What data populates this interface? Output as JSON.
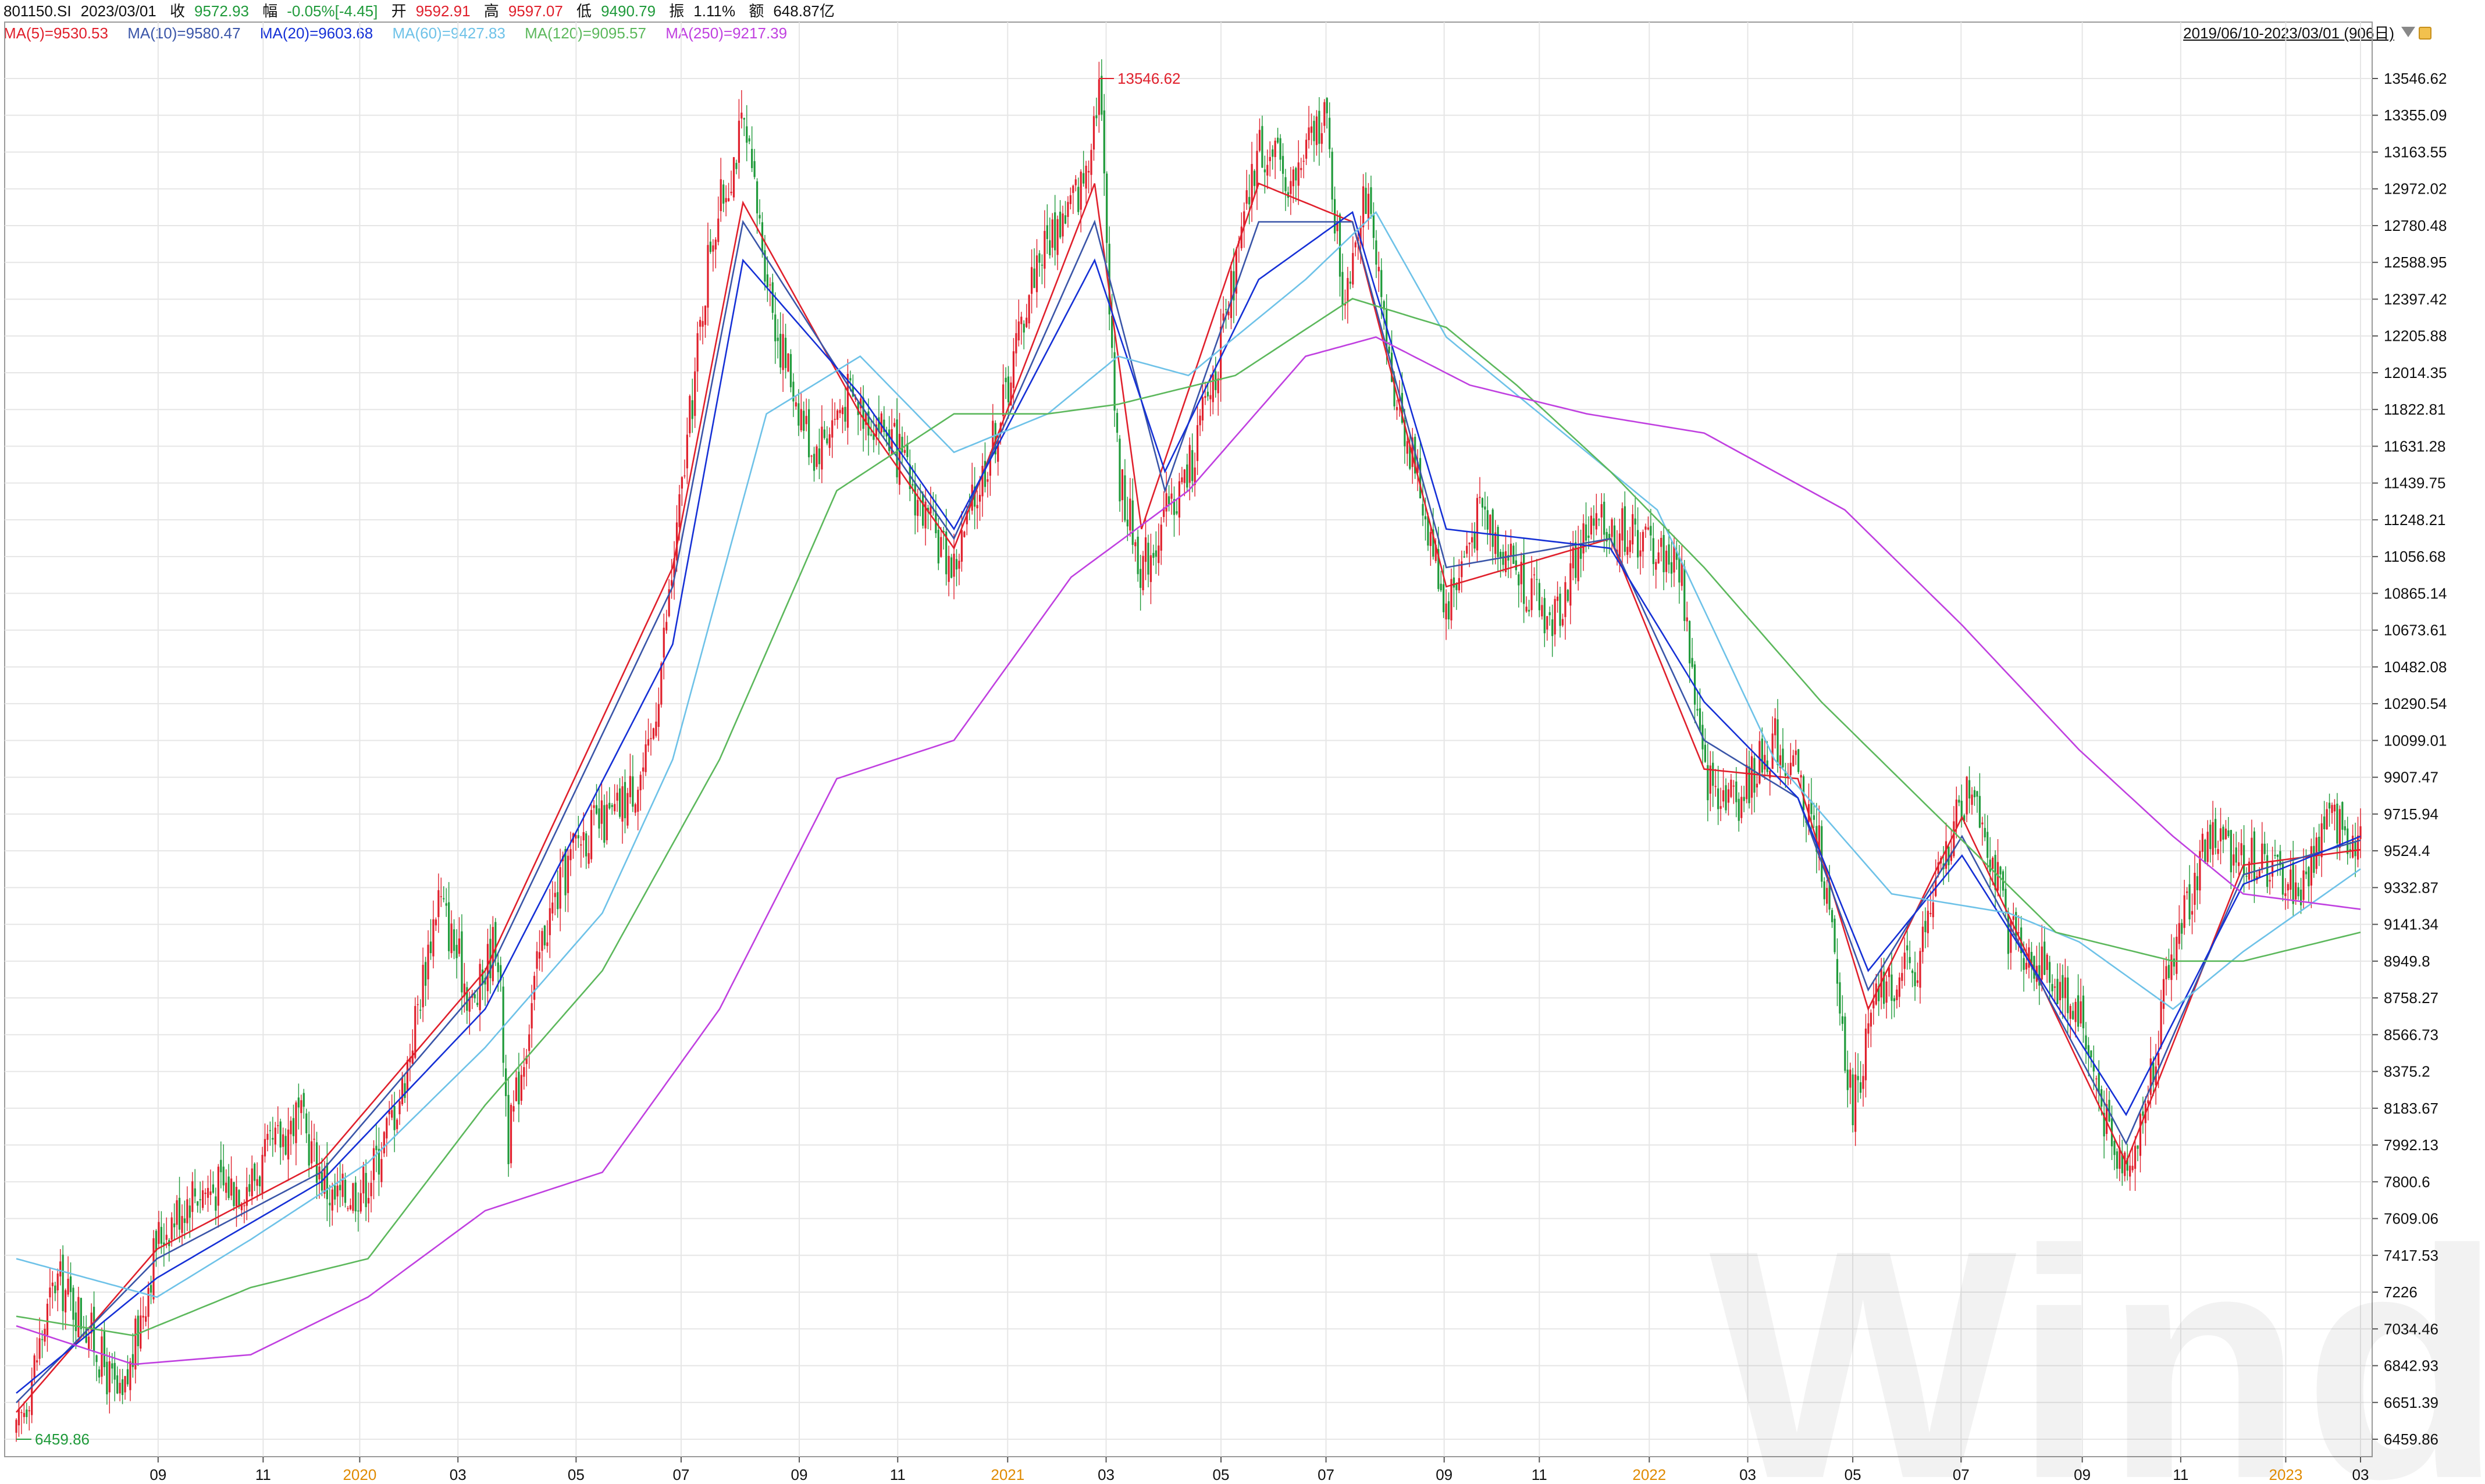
{
  "header": {
    "code": "801150.SI",
    "date": "2023/03/01",
    "close_label": "收",
    "close_value": "9572.93",
    "change_label": "幅",
    "change_value": "-0.05%[-4.45]",
    "open_label": "开",
    "open_value": "9592.91",
    "high_label": "高",
    "high_value": "9597.07",
    "low_label": "低",
    "low_value": "9490.79",
    "amplitude_label": "振",
    "amplitude_value": "1.11%",
    "amount_label": "额",
    "amount_value": "648.87亿"
  },
  "range_label": "2019/06/10-2023/03/01 (906日)",
  "ma_legend": [
    {
      "label": "MA(5)=9530.53",
      "color": "#e0202c"
    },
    {
      "label": "MA(10)=9580.47",
      "color": "#3a55a8"
    },
    {
      "label": "MA(20)=9603.68",
      "color": "#1530d6"
    },
    {
      "label": "MA(60)=9427.83",
      "color": "#6ec2e8"
    },
    {
      "label": "MA(120)=9095.57",
      "color": "#5cb85c"
    },
    {
      "label": "MA(250)=9217.39",
      "color": "#c040e0"
    }
  ],
  "watermark": "Wind",
  "colors": {
    "up": "#e0202c",
    "down": "#1f9a3a",
    "grid": "#e6e6e6"
  },
  "chart_data": {
    "type": "line",
    "title": "",
    "ylim": [
      6459.86,
      13546.62
    ],
    "y_ticks": [
      "13546.62",
      "13355.09",
      "13163.55",
      "12972.02",
      "12780.48",
      "12588.95",
      "12397.42",
      "12205.88",
      "12014.35",
      "11822.81",
      "11631.28",
      "11439.75",
      "11248.21",
      "11056.68",
      "10865.14",
      "10673.61",
      "10482.08",
      "10290.54",
      "10099.01",
      "9907.47",
      "9715.94",
      "9524.4",
      "9332.87",
      "9141.34",
      "8949.8",
      "8758.27",
      "8566.73",
      "8375.2",
      "8183.67",
      "7992.13",
      "7800.6",
      "7609.06",
      "7417.53",
      "7226",
      "7034.46",
      "6842.93",
      "6651.39",
      "6459.86"
    ],
    "x_ticks": [
      {
        "label": "09",
        "t": 0.0605,
        "year": false
      },
      {
        "label": "11",
        "t": 0.1053,
        "year": false
      },
      {
        "label": "2020",
        "t": 0.1465,
        "year": true
      },
      {
        "label": "03",
        "t": 0.1884,
        "year": false
      },
      {
        "label": "05",
        "t": 0.2388,
        "year": false
      },
      {
        "label": "07",
        "t": 0.2836,
        "year": false
      },
      {
        "label": "09",
        "t": 0.334,
        "year": false
      },
      {
        "label": "11",
        "t": 0.376,
        "year": false
      },
      {
        "label": "2021",
        "t": 0.4229,
        "year": true
      },
      {
        "label": "03",
        "t": 0.4649,
        "year": false
      },
      {
        "label": "05",
        "t": 0.5139,
        "year": false
      },
      {
        "label": "07",
        "t": 0.5587,
        "year": false
      },
      {
        "label": "09",
        "t": 0.6091,
        "year": false
      },
      {
        "label": "11",
        "t": 0.6497,
        "year": false
      },
      {
        "label": "2022",
        "t": 0.6966,
        "year": true
      },
      {
        "label": "03",
        "t": 0.7386,
        "year": false
      },
      {
        "label": "05",
        "t": 0.7834,
        "year": false
      },
      {
        "label": "07",
        "t": 0.8296,
        "year": false
      },
      {
        "label": "09",
        "t": 0.8813,
        "year": false
      },
      {
        "label": "11",
        "t": 0.9233,
        "year": false
      },
      {
        "label": "2023",
        "t": 0.9681,
        "year": true
      },
      {
        "label": "03",
        "t": 1.0,
        "year": false
      }
    ],
    "price_path": [
      [
        0.0,
        6460
      ],
      [
        0.017,
        7300
      ],
      [
        0.03,
        7060
      ],
      [
        0.045,
        6620
      ],
      [
        0.06,
        7500
      ],
      [
        0.075,
        7750
      ],
      [
        0.1,
        7800
      ],
      [
        0.12,
        8150
      ],
      [
        0.135,
        7700
      ],
      [
        0.15,
        7800
      ],
      [
        0.165,
        8300
      ],
      [
        0.18,
        9300
      ],
      [
        0.195,
        8700
      ],
      [
        0.205,
        9100
      ],
      [
        0.21,
        8000
      ],
      [
        0.225,
        9100
      ],
      [
        0.24,
        9600
      ],
      [
        0.255,
        9700
      ],
      [
        0.27,
        10000
      ],
      [
        0.282,
        11200
      ],
      [
        0.296,
        12700
      ],
      [
        0.31,
        13300
      ],
      [
        0.325,
        12200
      ],
      [
        0.34,
        11600
      ],
      [
        0.355,
        11900
      ],
      [
        0.372,
        11700
      ],
      [
        0.39,
        11200
      ],
      [
        0.4,
        11000
      ],
      [
        0.42,
        11800
      ],
      [
        0.435,
        12600
      ],
      [
        0.445,
        12800
      ],
      [
        0.455,
        13000
      ],
      [
        0.462,
        13546
      ],
      [
        0.47,
        11500
      ],
      [
        0.48,
        11000
      ],
      [
        0.5,
        11500
      ],
      [
        0.515,
        12200
      ],
      [
        0.53,
        13200
      ],
      [
        0.545,
        13000
      ],
      [
        0.558,
        13400
      ],
      [
        0.566,
        12400
      ],
      [
        0.575,
        13000
      ],
      [
        0.585,
        12100
      ],
      [
        0.597,
        11500
      ],
      [
        0.61,
        10800
      ],
      [
        0.625,
        11300
      ],
      [
        0.64,
        11000
      ],
      [
        0.655,
        10700
      ],
      [
        0.67,
        11200
      ],
      [
        0.685,
        11200
      ],
      [
        0.7,
        11100
      ],
      [
        0.71,
        11000
      ],
      [
        0.72,
        9900
      ],
      [
        0.735,
        9800
      ],
      [
        0.75,
        10100
      ],
      [
        0.76,
        9900
      ],
      [
        0.77,
        9500
      ],
      [
        0.783,
        8200
      ],
      [
        0.795,
        8800
      ],
      [
        0.81,
        8900
      ],
      [
        0.825,
        9600
      ],
      [
        0.835,
        9900
      ],
      [
        0.85,
        9100
      ],
      [
        0.865,
        8900
      ],
      [
        0.88,
        8700
      ],
      [
        0.895,
        7900
      ],
      [
        0.905,
        8000
      ],
      [
        0.92,
        9000
      ],
      [
        0.935,
        9600
      ],
      [
        0.95,
        9500
      ],
      [
        0.965,
        9400
      ],
      [
        0.975,
        9300
      ],
      [
        0.985,
        9700
      ],
      [
        1.0,
        9573
      ]
    ],
    "series": [
      {
        "name": "MA(5)",
        "color": "#e0202c",
        "values": [
          [
            0.0,
            6600
          ],
          [
            0.06,
            7450
          ],
          [
            0.13,
            7900
          ],
          [
            0.2,
            8900
          ],
          [
            0.28,
            11000
          ],
          [
            0.31,
            12900
          ],
          [
            0.36,
            11800
          ],
          [
            0.4,
            11100
          ],
          [
            0.46,
            13000
          ],
          [
            0.48,
            11200
          ],
          [
            0.53,
            13000
          ],
          [
            0.57,
            12800
          ],
          [
            0.61,
            10900
          ],
          [
            0.68,
            11150
          ],
          [
            0.72,
            9950
          ],
          [
            0.76,
            9900
          ],
          [
            0.79,
            8700
          ],
          [
            0.83,
            9700
          ],
          [
            0.9,
            7900
          ],
          [
            0.95,
            9450
          ],
          [
            1.0,
            9530
          ]
        ]
      },
      {
        "name": "MA(10)",
        "color": "#3a55a8",
        "values": [
          [
            0.0,
            6650
          ],
          [
            0.06,
            7400
          ],
          [
            0.13,
            7850
          ],
          [
            0.2,
            8850
          ],
          [
            0.28,
            10900
          ],
          [
            0.31,
            12800
          ],
          [
            0.36,
            11850
          ],
          [
            0.4,
            11150
          ],
          [
            0.46,
            12800
          ],
          [
            0.49,
            11400
          ],
          [
            0.53,
            12800
          ],
          [
            0.57,
            12800
          ],
          [
            0.61,
            11000
          ],
          [
            0.68,
            11150
          ],
          [
            0.72,
            10100
          ],
          [
            0.76,
            9800
          ],
          [
            0.79,
            8800
          ],
          [
            0.83,
            9600
          ],
          [
            0.9,
            8000
          ],
          [
            0.95,
            9400
          ],
          [
            1.0,
            9580
          ]
        ]
      },
      {
        "name": "MA(20)",
        "color": "#1530d6",
        "values": [
          [
            0.0,
            6700
          ],
          [
            0.06,
            7300
          ],
          [
            0.13,
            7800
          ],
          [
            0.2,
            8700
          ],
          [
            0.28,
            10600
          ],
          [
            0.31,
            12600
          ],
          [
            0.36,
            11900
          ],
          [
            0.4,
            11200
          ],
          [
            0.46,
            12600
          ],
          [
            0.49,
            11500
          ],
          [
            0.53,
            12500
          ],
          [
            0.57,
            12850
          ],
          [
            0.61,
            11200
          ],
          [
            0.68,
            11100
          ],
          [
            0.72,
            10300
          ],
          [
            0.76,
            9800
          ],
          [
            0.79,
            8900
          ],
          [
            0.83,
            9500
          ],
          [
            0.9,
            8150
          ],
          [
            0.95,
            9350
          ],
          [
            1.0,
            9600
          ]
        ]
      },
      {
        "name": "MA(60)",
        "color": "#6ec2e8",
        "values": [
          [
            0.0,
            7400
          ],
          [
            0.06,
            7200
          ],
          [
            0.1,
            7500
          ],
          [
            0.15,
            7900
          ],
          [
            0.2,
            8500
          ],
          [
            0.25,
            9200
          ],
          [
            0.28,
            10000
          ],
          [
            0.32,
            11800
          ],
          [
            0.36,
            12100
          ],
          [
            0.4,
            11600
          ],
          [
            0.44,
            11800
          ],
          [
            0.47,
            12100
          ],
          [
            0.5,
            12000
          ],
          [
            0.55,
            12500
          ],
          [
            0.58,
            12850
          ],
          [
            0.61,
            12200
          ],
          [
            0.66,
            11700
          ],
          [
            0.7,
            11300
          ],
          [
            0.75,
            10000
          ],
          [
            0.8,
            9300
          ],
          [
            0.85,
            9200
          ],
          [
            0.88,
            9050
          ],
          [
            0.92,
            8700
          ],
          [
            0.95,
            9000
          ],
          [
            1.0,
            9430
          ]
        ]
      },
      {
        "name": "MA(120)",
        "color": "#5cb85c",
        "values": [
          [
            0.0,
            7100
          ],
          [
            0.05,
            7000
          ],
          [
            0.1,
            7250
          ],
          [
            0.15,
            7400
          ],
          [
            0.2,
            8200
          ],
          [
            0.25,
            8900
          ],
          [
            0.3,
            10000
          ],
          [
            0.35,
            11400
          ],
          [
            0.4,
            11800
          ],
          [
            0.44,
            11800
          ],
          [
            0.47,
            11850
          ],
          [
            0.52,
            12000
          ],
          [
            0.57,
            12400
          ],
          [
            0.61,
            12250
          ],
          [
            0.64,
            11950
          ],
          [
            0.68,
            11500
          ],
          [
            0.72,
            11000
          ],
          [
            0.77,
            10300
          ],
          [
            0.82,
            9700
          ],
          [
            0.87,
            9100
          ],
          [
            0.92,
            8950
          ],
          [
            0.95,
            8950
          ],
          [
            1.0,
            9100
          ]
        ]
      },
      {
        "name": "MA(250)",
        "color": "#c040e0",
        "values": [
          [
            0.0,
            7050
          ],
          [
            0.05,
            6850
          ],
          [
            0.1,
            6900
          ],
          [
            0.15,
            7200
          ],
          [
            0.2,
            7650
          ],
          [
            0.25,
            7850
          ],
          [
            0.3,
            8700
          ],
          [
            0.35,
            9900
          ],
          [
            0.4,
            10100
          ],
          [
            0.45,
            10950
          ],
          [
            0.5,
            11400
          ],
          [
            0.55,
            12100
          ],
          [
            0.58,
            12200
          ],
          [
            0.62,
            11950
          ],
          [
            0.67,
            11800
          ],
          [
            0.72,
            11700
          ],
          [
            0.78,
            11300
          ],
          [
            0.83,
            10700
          ],
          [
            0.88,
            10050
          ],
          [
            0.92,
            9600
          ],
          [
            0.95,
            9300
          ],
          [
            1.0,
            9220
          ]
        ]
      }
    ],
    "annotations": [
      {
        "label": "13546.62",
        "t": 0.4618,
        "y": 13546.62,
        "color": "#e0202c"
      },
      {
        "label": "6459.86",
        "t": 0.0,
        "y": 6459.86,
        "color": "#1f9a3a"
      }
    ],
    "grid": true
  }
}
